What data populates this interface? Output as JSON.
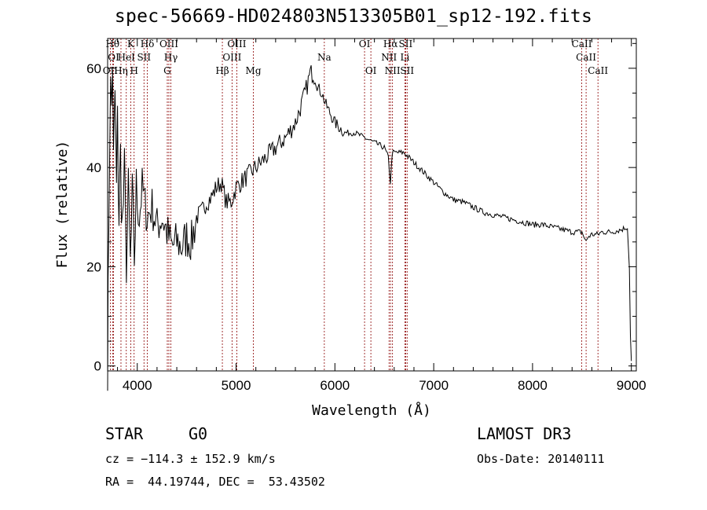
{
  "chart_data": {
    "type": "line",
    "title": "spec-56669-HD024803N513305B01_sp12-192.fits",
    "xlabel": "Wavelength (Å)",
    "ylabel": "Flux (relative)",
    "xlim": [
      3700,
      9050
    ],
    "ylim": [
      -1,
      66
    ],
    "xticks": [
      4000,
      5000,
      6000,
      7000,
      8000,
      9000
    ],
    "yticks": [
      0,
      20,
      40,
      60
    ],
    "spectrum": {
      "name": "flux",
      "x": [
        3700,
        3705,
        3712,
        3720,
        3730,
        3740,
        3750,
        3760,
        3775,
        3790,
        3800,
        3815,
        3830,
        3850,
        3870,
        3890,
        3910,
        3930,
        3950,
        3970,
        3990,
        4020,
        4050,
        4100,
        4150,
        4200,
        4250,
        4300,
        4350,
        4400,
        4450,
        4500,
        4550,
        4600,
        4650,
        4700,
        4750,
        4800,
        4850,
        4900,
        4950,
        5000,
        5100,
        5200,
        5300,
        5400,
        5500,
        5600,
        5700,
        5750,
        5780,
        5800,
        5830,
        5870,
        5900,
        5950,
        6000,
        6050,
        6100,
        6200,
        6300,
        6400,
        6500,
        6540,
        6562,
        6580,
        6620,
        6700,
        6800,
        6900,
        7000,
        7100,
        7200,
        7300,
        7400,
        7500,
        7600,
        7700,
        7800,
        7900,
        8000,
        8100,
        8200,
        8300,
        8400,
        8500,
        8542,
        8560,
        8600,
        8662,
        8700,
        8800,
        8900,
        8960,
        8980,
        8990,
        9000
      ],
      "y": [
        2,
        12,
        30,
        45,
        55,
        52,
        62,
        40,
        55,
        35,
        48,
        30,
        42,
        28,
        38,
        22,
        34,
        20,
        33,
        22,
        35,
        30,
        36,
        30,
        32,
        28,
        30,
        27,
        24,
        25,
        24,
        26,
        25,
        30,
        31,
        33,
        34,
        36,
        37,
        33,
        33,
        36,
        38,
        40,
        42,
        44,
        46,
        49,
        55,
        59,
        59,
        58,
        56,
        55,
        53,
        51,
        49,
        48,
        47,
        47,
        46,
        45,
        44,
        42,
        37,
        43,
        43,
        43,
        41,
        39,
        37,
        35,
        33.5,
        33,
        32,
        31,
        30.5,
        30,
        29.5,
        29,
        28.5,
        28.5,
        28,
        27.5,
        27,
        27,
        25,
        26,
        26.5,
        26.5,
        27,
        27,
        27.5,
        28,
        20,
        6,
        1
      ]
    },
    "lines": [
      {
        "label": "OII",
        "wave": 3727,
        "row": 3
      },
      {
        "label": "Hθ",
        "wave": 3750,
        "row": 1
      },
      {
        "label": "OI",
        "wave": 3760,
        "row": 2
      },
      {
        "label": "Hη",
        "wave": 3835,
        "row": 3
      },
      {
        "label": "HeI",
        "wave": 3889,
        "row": 2
      },
      {
        "label": "K",
        "wave": 3934,
        "row": 1
      },
      {
        "label": "H",
        "wave": 3968,
        "row": 3
      },
      {
        "label": "SII",
        "wave": 4068,
        "row": 2
      },
      {
        "label": "Hδ",
        "wave": 4102,
        "row": 1
      },
      {
        "label": "OIII",
        "wave": 4320,
        "row": 1
      },
      {
        "label": "Hγ",
        "wave": 4340,
        "row": 2
      },
      {
        "label": "G",
        "wave": 4304,
        "row": 3
      },
      {
        "label": "Hβ",
        "wave": 4861,
        "row": 3
      },
      {
        "label": "OIII",
        "wave": 4959,
        "row": 2
      },
      {
        "label": "OIII",
        "wave": 5007,
        "row": 1
      },
      {
        "label": "Mg",
        "wave": 5175,
        "row": 3
      },
      {
        "label": "Na",
        "wave": 5893,
        "row": 2
      },
      {
        "label": "OI",
        "wave": 6300,
        "row": 1
      },
      {
        "label": "OI",
        "wave": 6364,
        "row": 3
      },
      {
        "label": "NII",
        "wave": 6548,
        "row": 2
      },
      {
        "label": "Hα",
        "wave": 6563,
        "row": 1
      },
      {
        "label": "NII",
        "wave": 6583,
        "row": 3
      },
      {
        "label": "SII",
        "wave": 6716,
        "row": 1
      },
      {
        "label": "Li",
        "wave": 6708,
        "row": 2
      },
      {
        "label": "SII",
        "wave": 6731,
        "row": 3
      },
      {
        "label": "CaII",
        "wave": 8498,
        "row": 1
      },
      {
        "label": "CaII",
        "wave": 8542,
        "row": 2
      },
      {
        "label": "CaII",
        "wave": 8662,
        "row": 3
      }
    ],
    "line_color": "#8b0000",
    "spectrum_color": "#000000"
  },
  "info": {
    "class": "STAR",
    "subclass": "G0",
    "survey": "LAMOST DR3",
    "cz": "cz = −114.3 ± 152.9 km/s",
    "obs_date": "Obs-Date: 20140111",
    "radec": "RA =  44.19744, DEC =  53.43502"
  }
}
